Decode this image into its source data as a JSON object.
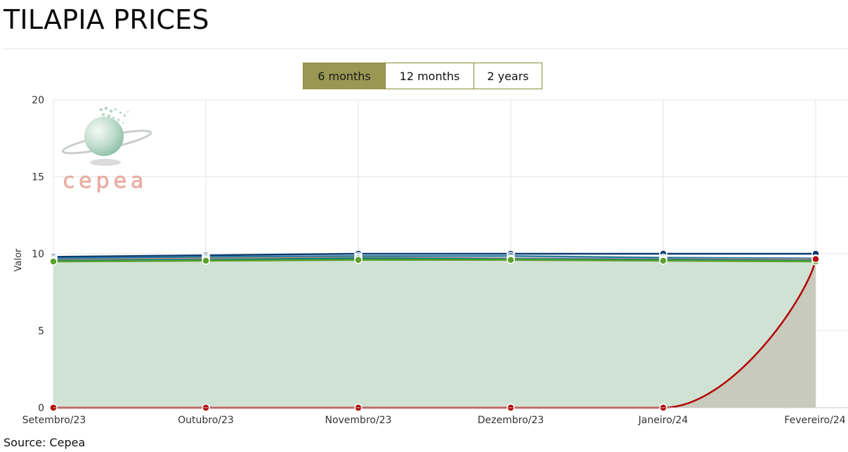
{
  "page": {
    "title": "TILAPIA PRICES",
    "source": "Source: Cepea",
    "range_buttons": [
      {
        "label": "6 months",
        "active": true
      },
      {
        "label": "12 months",
        "active": false
      },
      {
        "label": "2 years",
        "active": false
      }
    ]
  },
  "watermark": {
    "text": "cepea"
  },
  "chart_data": {
    "type": "area",
    "title": "",
    "xlabel": "",
    "ylabel": "Valor",
    "ylim": [
      0,
      20
    ],
    "yticks": [
      0,
      5,
      10,
      15,
      20
    ],
    "grid": true,
    "categories": [
      "Setembro/23",
      "Outubro/23",
      "Novembro/23",
      "Dezembro/23",
      "Janeiro/24",
      "Fevereiro/24"
    ],
    "series": [
      {
        "values": [
          9.8,
          9.9,
          10.0,
          10.0,
          10.0,
          10.0
        ],
        "color": "#0b3a73",
        "fill": false
      },
      {
        "values": [
          9.7,
          9.8,
          9.85,
          9.85,
          9.75,
          9.7
        ],
        "color": "#2d7ba0",
        "fill": false
      },
      {
        "values": [
          9.6,
          9.7,
          9.75,
          9.7,
          9.65,
          9.65
        ],
        "color": "#9c8c84",
        "fill": false
      },
      {
        "values": [
          9.55,
          9.6,
          9.7,
          9.65,
          9.6,
          9.55
        ],
        "color": "#0f8073",
        "fill": false
      },
      {
        "values": [
          9.5,
          9.55,
          9.6,
          9.6,
          9.55,
          9.5
        ],
        "color": "#5aa02c",
        "fill": true,
        "fill_color": "#cde0d2"
      },
      {
        "values": [
          0,
          0,
          0,
          0,
          0,
          9.65
        ],
        "color": "#b30000",
        "fill": true,
        "fill_color": "#c7c8bb",
        "curved": true
      }
    ]
  }
}
